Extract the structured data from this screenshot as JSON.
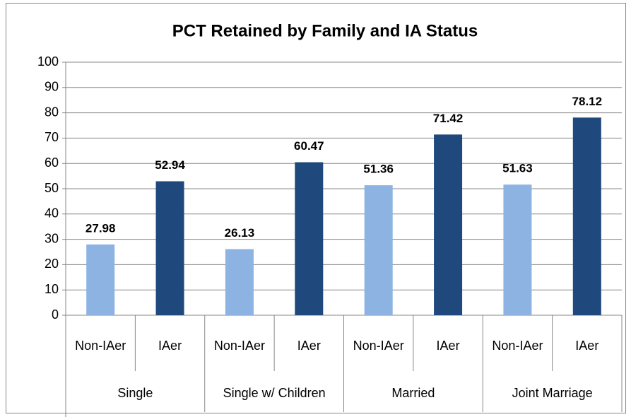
{
  "chart_data": {
    "type": "bar",
    "title": "PCT Retained by Family and IA Status",
    "categories": [
      "Non-IAer",
      "IAer",
      "Non-IAer",
      "IAer",
      "Non-IAer",
      "IAer",
      "Non-IAer",
      "IAer"
    ],
    "groups": [
      "Single",
      "Single w/ Children",
      "Married",
      "Joint Marriage"
    ],
    "values": [
      27.98,
      52.94,
      26.13,
      60.47,
      51.36,
      71.42,
      51.63,
      78.12
    ],
    "colors": [
      "#8db3e2",
      "#1f497d",
      "#8db3e2",
      "#1f497d",
      "#8db3e2",
      "#1f497d",
      "#8db3e2",
      "#1f497d"
    ],
    "ylim": [
      0,
      100
    ],
    "yticks": [
      0,
      10,
      20,
      30,
      40,
      50,
      60,
      70,
      80,
      90,
      100
    ],
    "grid": true
  }
}
